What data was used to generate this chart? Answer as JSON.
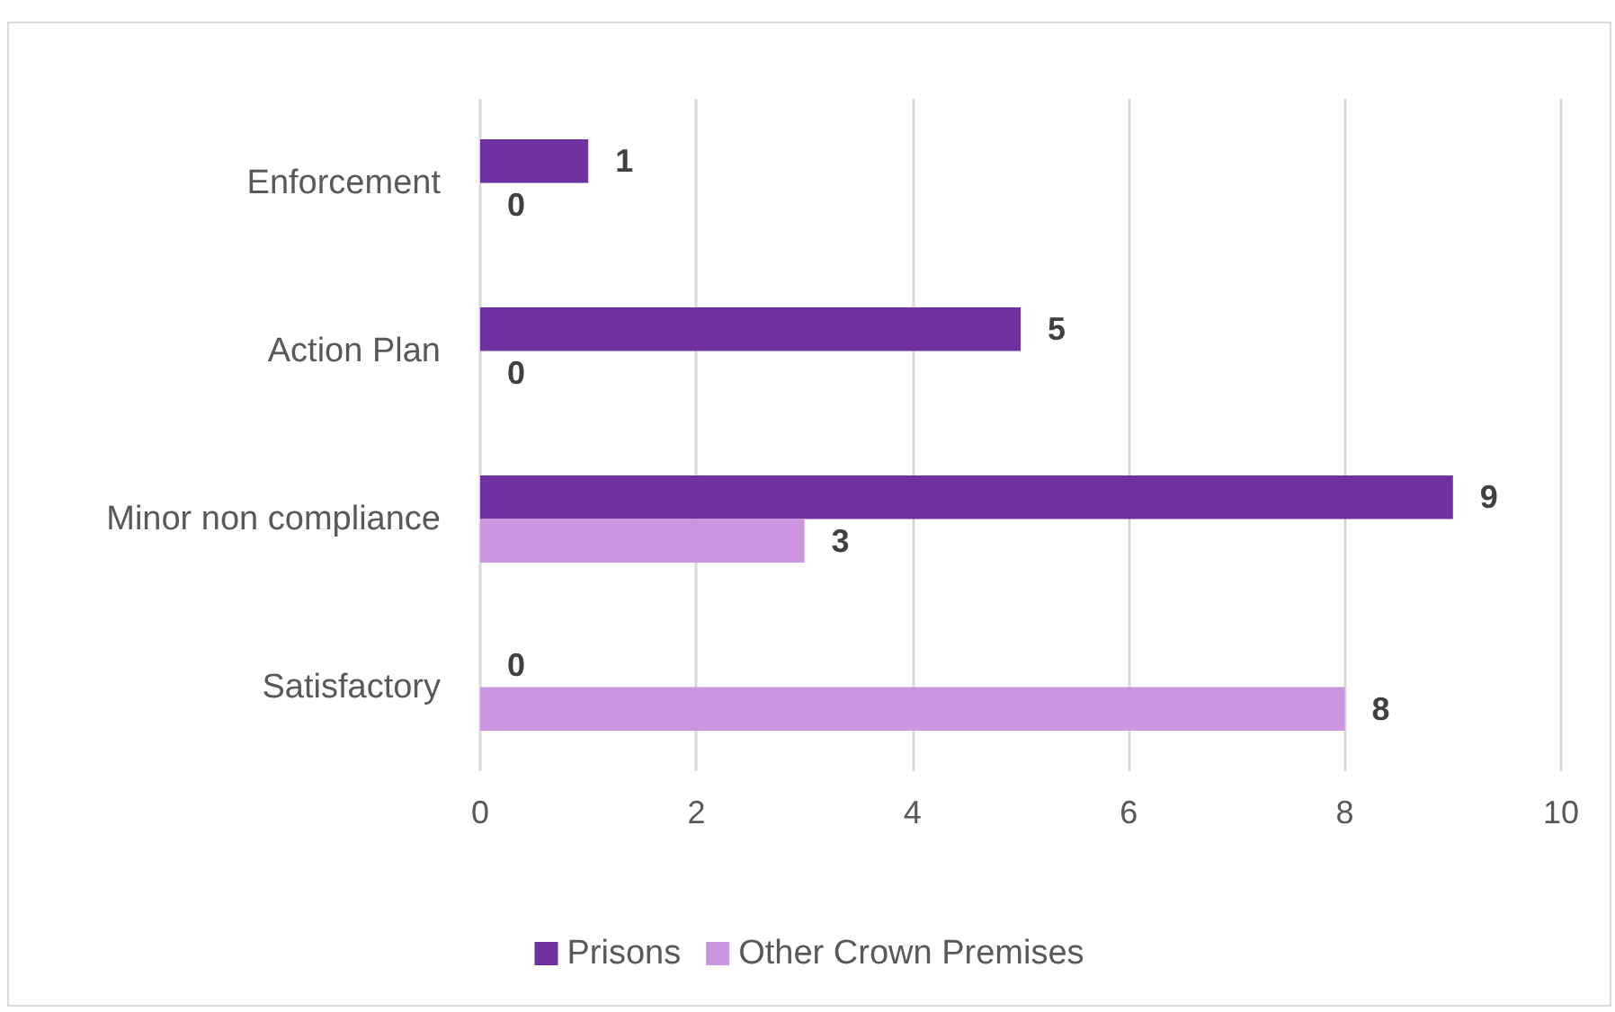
{
  "chart_data": {
    "type": "bar",
    "orientation": "horizontal",
    "categories": [
      "Enforcement",
      "Action Plan",
      "Minor non compliance",
      "Satisfactory"
    ],
    "series": [
      {
        "name": "Prisons",
        "color": "#7030a0",
        "values": [
          1,
          5,
          9,
          0
        ]
      },
      {
        "name": "Other Crown Premises",
        "color": "#cc95e0",
        "values": [
          0,
          0,
          3,
          8
        ]
      }
    ],
    "xlim": [
      0,
      10
    ],
    "xticks": [
      0,
      2,
      4,
      6,
      8,
      10
    ],
    "grid": "x",
    "legend": "bottom",
    "data_labels": true
  }
}
